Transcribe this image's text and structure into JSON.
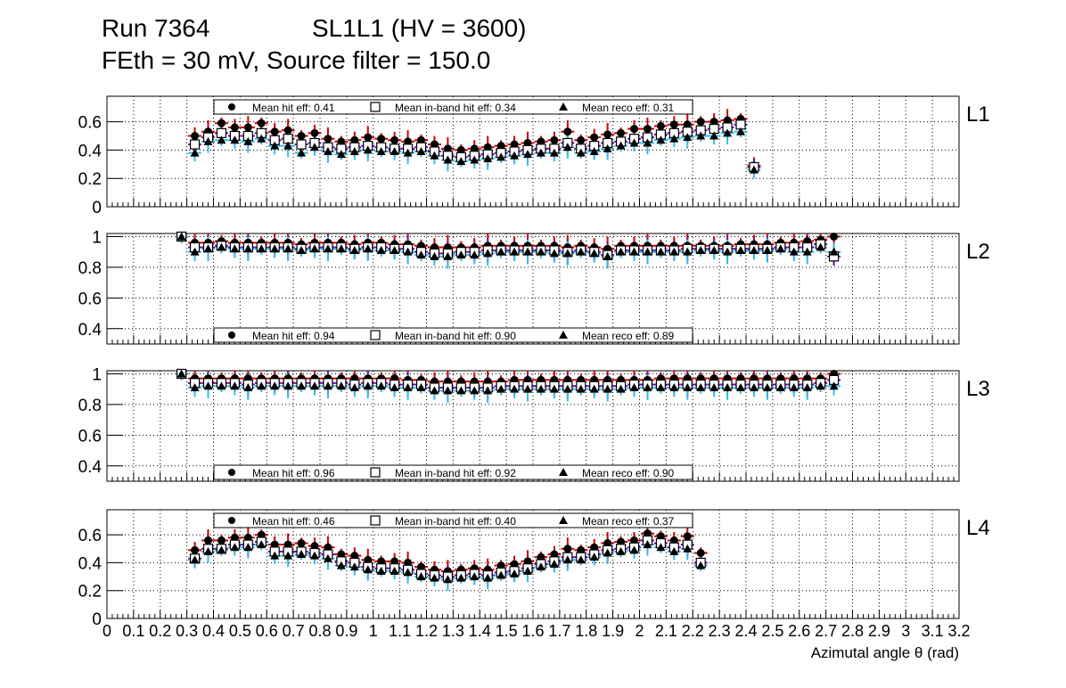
{
  "header": {
    "run": "Run 7364",
    "chamber": "SL1L1 (HV = 3600)",
    "settings": "FEth = 30 mV, Source filter = 150.0"
  },
  "colors": {
    "mean_hit": "#000000",
    "hit_error": "#cc0000",
    "inband_error": "#6a0dad",
    "reco_error": "#33bbee",
    "frame": "#000000",
    "grid": "#000000"
  },
  "chart_data": {
    "type": "scatter",
    "xlabel": "Azimutal angle θ (rad)",
    "xlim": [
      0,
      3.2
    ],
    "x_ticks": [
      "0",
      "0.1",
      "0.2",
      "0.3",
      "0.4",
      "0.5",
      "0.6",
      "0.7",
      "0.8",
      "0.9",
      "1",
      "1.1",
      "1.2",
      "1.3",
      "1.4",
      "1.5",
      "1.6",
      "1.7",
      "1.8",
      "1.9",
      "2",
      "2.1",
      "2.2",
      "2.3",
      "2.4",
      "2.5",
      "2.6",
      "2.7",
      "2.8",
      "2.9",
      "3",
      "3.1",
      "3.2"
    ],
    "x": [
      0.28,
      0.33,
      0.38,
      0.43,
      0.48,
      0.53,
      0.58,
      0.63,
      0.68,
      0.73,
      0.78,
      0.83,
      0.88,
      0.93,
      0.98,
      1.03,
      1.08,
      1.13,
      1.18,
      1.23,
      1.28,
      1.33,
      1.38,
      1.43,
      1.48,
      1.53,
      1.58,
      1.63,
      1.68,
      1.73,
      1.78,
      1.83,
      1.88,
      1.93,
      1.98,
      2.03,
      2.08,
      2.13,
      2.18,
      2.23,
      2.28,
      2.33,
      2.38,
      2.43,
      2.48,
      2.53,
      2.58,
      2.63,
      2.68,
      2.73
    ],
    "grid": true,
    "panels": [
      {
        "label": "L1",
        "ylim": [
          0,
          0.78
        ],
        "y_ticks": [
          "0",
          "0.2",
          "0.4",
          "0.6"
        ],
        "legend": [
          "Mean hit  eff: 0.41",
          "Mean in-band hit eff: 0.34",
          "Mean reco eff: 0.31"
        ],
        "legend_position": "top",
        "series": [
          {
            "name": "Mean hit  eff: 0.41",
            "marker": "circle",
            "values": [
              null,
              0.5,
              0.53,
              0.59,
              0.56,
              0.56,
              0.59,
              0.53,
              0.54,
              0.5,
              0.52,
              0.48,
              0.46,
              0.47,
              0.49,
              0.48,
              0.47,
              0.46,
              0.47,
              0.44,
              0.41,
              0.4,
              0.41,
              0.42,
              0.43,
              0.44,
              0.45,
              0.46,
              0.47,
              0.53,
              0.47,
              0.49,
              0.51,
              0.52,
              0.55,
              0.55,
              0.57,
              0.58,
              0.58,
              0.6,
              0.6,
              0.61,
              0.62,
              0.29
            ]
          },
          {
            "name": "Mean in-band hit eff: 0.34",
            "marker": "square-open",
            "values": [
              null,
              0.44,
              0.49,
              0.52,
              0.5,
              0.5,
              0.52,
              0.47,
              0.48,
              0.44,
              0.45,
              0.42,
              0.41,
              0.42,
              0.43,
              0.42,
              0.41,
              0.41,
              0.42,
              0.39,
              0.36,
              0.35,
              0.36,
              0.37,
              0.38,
              0.39,
              0.4,
              0.41,
              0.41,
              0.45,
              0.41,
              0.43,
              0.45,
              0.46,
              0.48,
              0.49,
              0.51,
              0.52,
              0.53,
              0.54,
              0.55,
              0.56,
              0.58,
              0.28
            ]
          },
          {
            "name": "Mean reco eff: 0.31",
            "marker": "triangle",
            "values": [
              null,
              0.38,
              0.46,
              0.47,
              0.47,
              0.46,
              0.48,
              0.43,
              0.43,
              0.38,
              0.42,
              0.39,
              0.37,
              0.39,
              0.4,
              0.39,
              0.39,
              0.38,
              0.39,
              0.36,
              0.33,
              0.32,
              0.33,
              0.34,
              0.35,
              0.36,
              0.37,
              0.38,
              0.38,
              0.42,
              0.38,
              0.39,
              0.41,
              0.43,
              0.45,
              0.45,
              0.47,
              0.48,
              0.49,
              0.5,
              0.5,
              0.52,
              0.53,
              0.26
            ]
          }
        ]
      },
      {
        "label": "L2",
        "ylim": [
          0.3,
          1.02
        ],
        "y_ticks": [
          "0.4",
          "0.6",
          "0.8",
          "1"
        ],
        "legend": [
          "Mean hit  eff: 0.94",
          "Mean in-band hit eff: 0.90",
          "Mean reco eff: 0.89"
        ],
        "legend_position": "bottom",
        "series": [
          {
            "name": "Mean hit  eff: 0.94",
            "marker": "circle",
            "values": [
              1.0,
              0.96,
              0.96,
              0.97,
              0.96,
              0.96,
              0.96,
              0.96,
              0.96,
              0.95,
              0.96,
              0.96,
              0.96,
              0.95,
              0.96,
              0.96,
              0.95,
              0.95,
              0.94,
              0.93,
              0.93,
              0.93,
              0.93,
              0.94,
              0.94,
              0.94,
              0.94,
              0.94,
              0.94,
              0.93,
              0.94,
              0.93,
              0.92,
              0.94,
              0.94,
              0.94,
              0.94,
              0.94,
              0.94,
              0.94,
              0.94,
              0.94,
              0.95,
              0.95,
              0.95,
              0.96,
              0.96,
              0.97,
              0.98,
              1.0
            ]
          },
          {
            "name": "Mean in-band hit eff: 0.90",
            "marker": "square-open",
            "values": [
              1.0,
              0.93,
              0.93,
              0.94,
              0.93,
              0.93,
              0.93,
              0.93,
              0.93,
              0.92,
              0.93,
              0.93,
              0.93,
              0.92,
              0.93,
              0.93,
              0.92,
              0.92,
              0.9,
              0.89,
              0.89,
              0.9,
              0.9,
              0.91,
              0.91,
              0.91,
              0.91,
              0.91,
              0.91,
              0.9,
              0.91,
              0.9,
              0.88,
              0.91,
              0.91,
              0.91,
              0.91,
              0.91,
              0.92,
              0.92,
              0.92,
              0.92,
              0.92,
              0.92,
              0.92,
              0.93,
              0.93,
              0.93,
              0.95,
              0.87
            ]
          },
          {
            "name": "Mean reco eff: 0.89",
            "marker": "triangle",
            "values": [
              1.0,
              0.9,
              0.92,
              0.93,
              0.92,
              0.92,
              0.92,
              0.92,
              0.92,
              0.91,
              0.92,
              0.92,
              0.92,
              0.91,
              0.92,
              0.91,
              0.91,
              0.9,
              0.88,
              0.87,
              0.87,
              0.88,
              0.88,
              0.89,
              0.9,
              0.9,
              0.9,
              0.9,
              0.89,
              0.89,
              0.9,
              0.89,
              0.87,
              0.9,
              0.9,
              0.9,
              0.9,
              0.9,
              0.9,
              0.91,
              0.91,
              0.9,
              0.91,
              0.91,
              0.91,
              0.92,
              0.9,
              0.9,
              0.93,
              0.9
            ]
          }
        ]
      },
      {
        "label": "L3",
        "ylim": [
          0.3,
          1.02
        ],
        "y_ticks": [
          "0.4",
          "0.6",
          "0.8",
          "1"
        ],
        "legend": [
          "Mean hit  eff: 0.96",
          "Mean in-band hit eff: 0.92",
          "Mean reco eff: 0.90"
        ],
        "legend_position": "bottom",
        "series": [
          {
            "name": "Mean hit  eff: 0.96",
            "marker": "circle",
            "values": [
              1.0,
              0.97,
              0.97,
              0.97,
              0.97,
              0.97,
              0.97,
              0.97,
              0.97,
              0.97,
              0.97,
              0.97,
              0.97,
              0.97,
              0.97,
              0.97,
              0.97,
              0.96,
              0.96,
              0.95,
              0.95,
              0.95,
              0.95,
              0.95,
              0.95,
              0.96,
              0.96,
              0.96,
              0.96,
              0.96,
              0.96,
              0.96,
              0.96,
              0.96,
              0.96,
              0.96,
              0.97,
              0.97,
              0.97,
              0.97,
              0.97,
              0.97,
              0.97,
              0.97,
              0.97,
              0.97,
              0.97,
              0.97,
              0.97,
              1.0
            ]
          },
          {
            "name": "Mean in-band hit eff: 0.92",
            "marker": "square-open",
            "values": [
              1.0,
              0.94,
              0.94,
              0.94,
              0.94,
              0.93,
              0.94,
              0.94,
              0.94,
              0.94,
              0.94,
              0.94,
              0.94,
              0.93,
              0.94,
              0.94,
              0.93,
              0.93,
              0.93,
              0.91,
              0.91,
              0.91,
              0.91,
              0.91,
              0.92,
              0.92,
              0.92,
              0.92,
              0.92,
              0.92,
              0.92,
              0.92,
              0.92,
              0.92,
              0.93,
              0.93,
              0.93,
              0.93,
              0.93,
              0.93,
              0.93,
              0.93,
              0.93,
              0.93,
              0.93,
              0.93,
              0.93,
              0.93,
              0.94,
              0.96
            ]
          },
          {
            "name": "Mean reco eff: 0.90",
            "marker": "triangle",
            "values": [
              1.0,
              0.91,
              0.92,
              0.92,
              0.92,
              0.91,
              0.92,
              0.92,
              0.92,
              0.92,
              0.92,
              0.92,
              0.92,
              0.91,
              0.92,
              0.92,
              0.91,
              0.91,
              0.91,
              0.89,
              0.89,
              0.89,
              0.89,
              0.89,
              0.9,
              0.9,
              0.9,
              0.9,
              0.9,
              0.9,
              0.9,
              0.9,
              0.9,
              0.9,
              0.91,
              0.91,
              0.91,
              0.91,
              0.91,
              0.91,
              0.91,
              0.91,
              0.91,
              0.91,
              0.91,
              0.91,
              0.91,
              0.91,
              0.92,
              0.92
            ]
          }
        ]
      },
      {
        "label": "L4",
        "ylim": [
          0,
          0.78
        ],
        "y_ticks": [
          "0",
          "0.2",
          "0.4",
          "0.6"
        ],
        "legend": [
          "Mean hit  eff: 0.46",
          "Mean in-band hit eff: 0.40",
          "Mean reco eff: 0.37"
        ],
        "legend_position": "top",
        "series": [
          {
            "name": "Mean hit  eff: 0.46",
            "marker": "circle",
            "values": [
              null,
              0.49,
              0.56,
              0.56,
              0.58,
              0.58,
              0.6,
              0.53,
              0.53,
              0.54,
              0.52,
              0.51,
              0.46,
              0.45,
              0.42,
              0.41,
              0.41,
              0.4,
              0.37,
              0.35,
              0.34,
              0.35,
              0.36,
              0.35,
              0.38,
              0.39,
              0.41,
              0.44,
              0.46,
              0.5,
              0.49,
              0.51,
              0.54,
              0.55,
              0.56,
              0.61,
              0.59,
              0.56,
              0.59,
              0.47
            ]
          },
          {
            "name": "Mean in-band hit eff: 0.40",
            "marker": "square-open",
            "values": [
              null,
              0.43,
              0.5,
              0.5,
              0.53,
              0.53,
              0.55,
              0.48,
              0.48,
              0.48,
              0.47,
              0.46,
              0.41,
              0.4,
              0.37,
              0.36,
              0.36,
              0.35,
              0.32,
              0.31,
              0.3,
              0.31,
              0.32,
              0.31,
              0.33,
              0.34,
              0.36,
              0.39,
              0.41,
              0.44,
              0.44,
              0.46,
              0.49,
              0.5,
              0.51,
              0.56,
              0.54,
              0.51,
              0.53,
              0.4
            ]
          },
          {
            "name": "Mean reco eff: 0.37",
            "marker": "triangle",
            "values": [
              null,
              0.42,
              0.48,
              0.49,
              0.51,
              0.51,
              0.53,
              0.45,
              0.45,
              0.46,
              0.45,
              0.43,
              0.38,
              0.37,
              0.35,
              0.34,
              0.34,
              0.33,
              0.3,
              0.29,
              0.28,
              0.29,
              0.3,
              0.29,
              0.31,
              0.32,
              0.34,
              0.37,
              0.39,
              0.42,
              0.42,
              0.44,
              0.47,
              0.48,
              0.49,
              0.53,
              0.51,
              0.48,
              0.5,
              0.38
            ]
          }
        ]
      }
    ]
  }
}
